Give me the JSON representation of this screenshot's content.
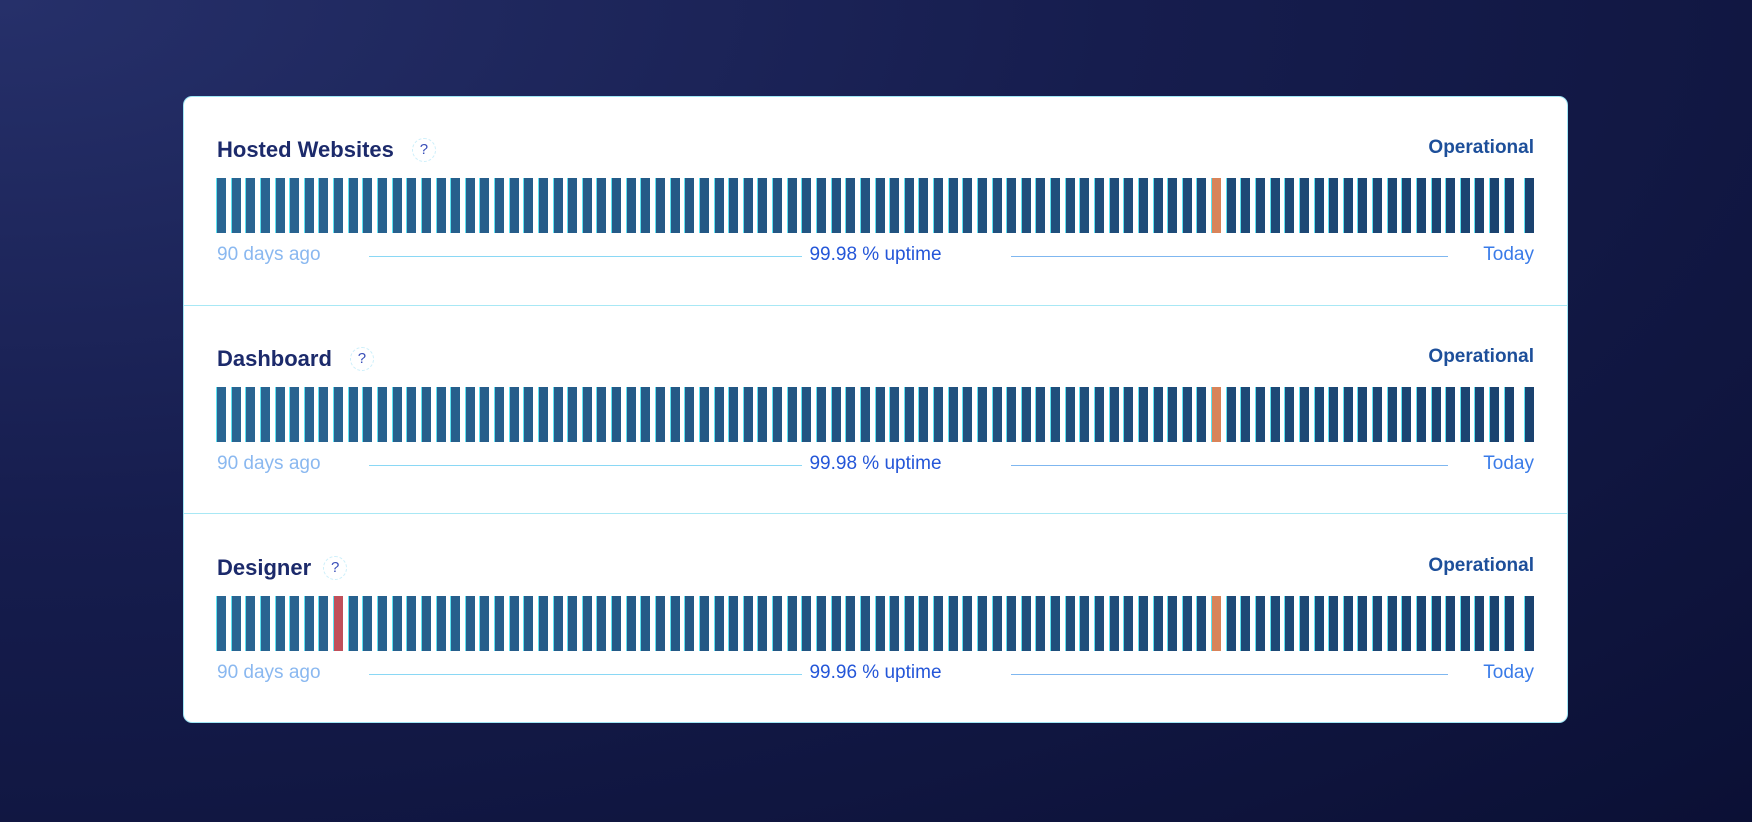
{
  "colors": {
    "operational_start": "#2a6592",
    "operational_end": "#1b426f",
    "partial": "#d8845a",
    "major": "#c0505a"
  },
  "days_shown": 90,
  "components": [
    {
      "name": "Hosted Websites",
      "help": "?",
      "status": "Operational",
      "uptime": "99.98 % uptime",
      "start_label": "90 days ago",
      "end_label": "Today",
      "incidents": [
        {
          "day_index": 68,
          "severity": "partial"
        }
      ]
    },
    {
      "name": "Dashboard",
      "help": "?",
      "status": "Operational",
      "uptime": "99.98 % uptime",
      "start_label": "90 days ago",
      "end_label": "Today",
      "incidents": [
        {
          "day_index": 68,
          "severity": "partial"
        }
      ]
    },
    {
      "name": "Designer",
      "help": "?",
      "status": "Operational",
      "uptime": "99.96 % uptime",
      "start_label": "90 days ago",
      "end_label": "Today",
      "incidents": [
        {
          "day_index": 8,
          "severity": "major"
        },
        {
          "day_index": 68,
          "severity": "partial"
        }
      ]
    }
  ]
}
